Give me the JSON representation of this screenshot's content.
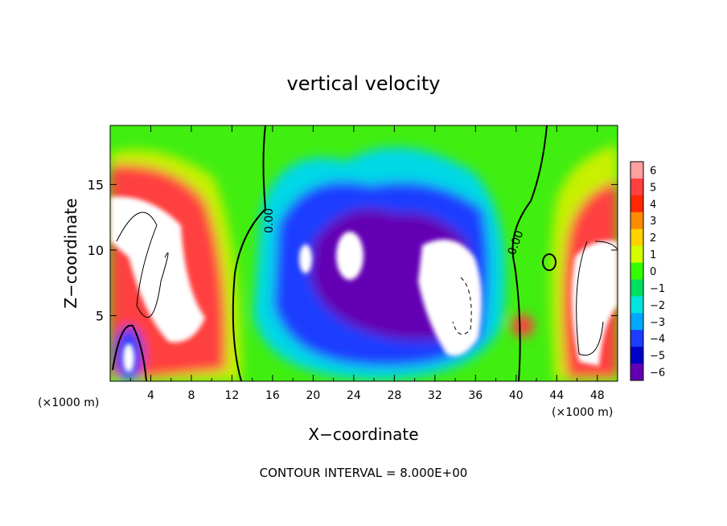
{
  "chart_data": {
    "type": "heatmap",
    "title": "vertical velocity",
    "xlabel": "X−coordinate",
    "ylabel": "Z−coordinate",
    "x_unit_left": "(×1000 m)",
    "x_unit_right": "(×1000 m)",
    "footer": "CONTOUR INTERVAL = 8.000E+00",
    "xlim": [
      0,
      50
    ],
    "ylim": [
      0,
      19.5
    ],
    "x_ticks": [
      "4",
      "8",
      "12",
      "16",
      "20",
      "24",
      "28",
      "32",
      "36",
      "40",
      "44",
      "48"
    ],
    "x_tick_values": [
      4,
      8,
      12,
      16,
      20,
      24,
      28,
      32,
      36,
      40,
      44,
      48
    ],
    "y_ticks": [
      "5",
      "10",
      "15"
    ],
    "y_tick_values": [
      5,
      10,
      15
    ],
    "colorbar": {
      "labels": [
        "6",
        "5",
        "4",
        "3",
        "2",
        "1",
        "0",
        "−1",
        "−2",
        "−3",
        "−4",
        "−5",
        "−6"
      ],
      "values": [
        6,
        5,
        4,
        3,
        2,
        1,
        0,
        -1,
        -2,
        -3,
        -4,
        -5,
        -6
      ],
      "colors": [
        "#ffa0a0",
        "#ff4040",
        "#ff2800",
        "#ff8c00",
        "#ffd200",
        "#d2ff00",
        "#32ff00",
        "#00e060",
        "#00e6dc",
        "#00a8ff",
        "#1e3cff",
        "#0000c8",
        "#6400b4"
      ]
    },
    "contour_labels": [
      "0.00",
      "0.00"
    ],
    "features": [
      {
        "x": 5,
        "z": 11,
        "w": 10,
        "kind": "updraft"
      },
      {
        "x": 46,
        "z": 10,
        "w": 10,
        "kind": "updraft"
      },
      {
        "x": 2,
        "z": 2,
        "w": -8,
        "kind": "downdraft"
      },
      {
        "x": 25,
        "z": 9,
        "w": -6,
        "kind": "downdraft"
      },
      {
        "x": 33,
        "z": 7,
        "w": -8,
        "kind": "downdraft"
      },
      {
        "x": 40.5,
        "z": 4,
        "w": 4,
        "kind": "updraft"
      }
    ]
  }
}
